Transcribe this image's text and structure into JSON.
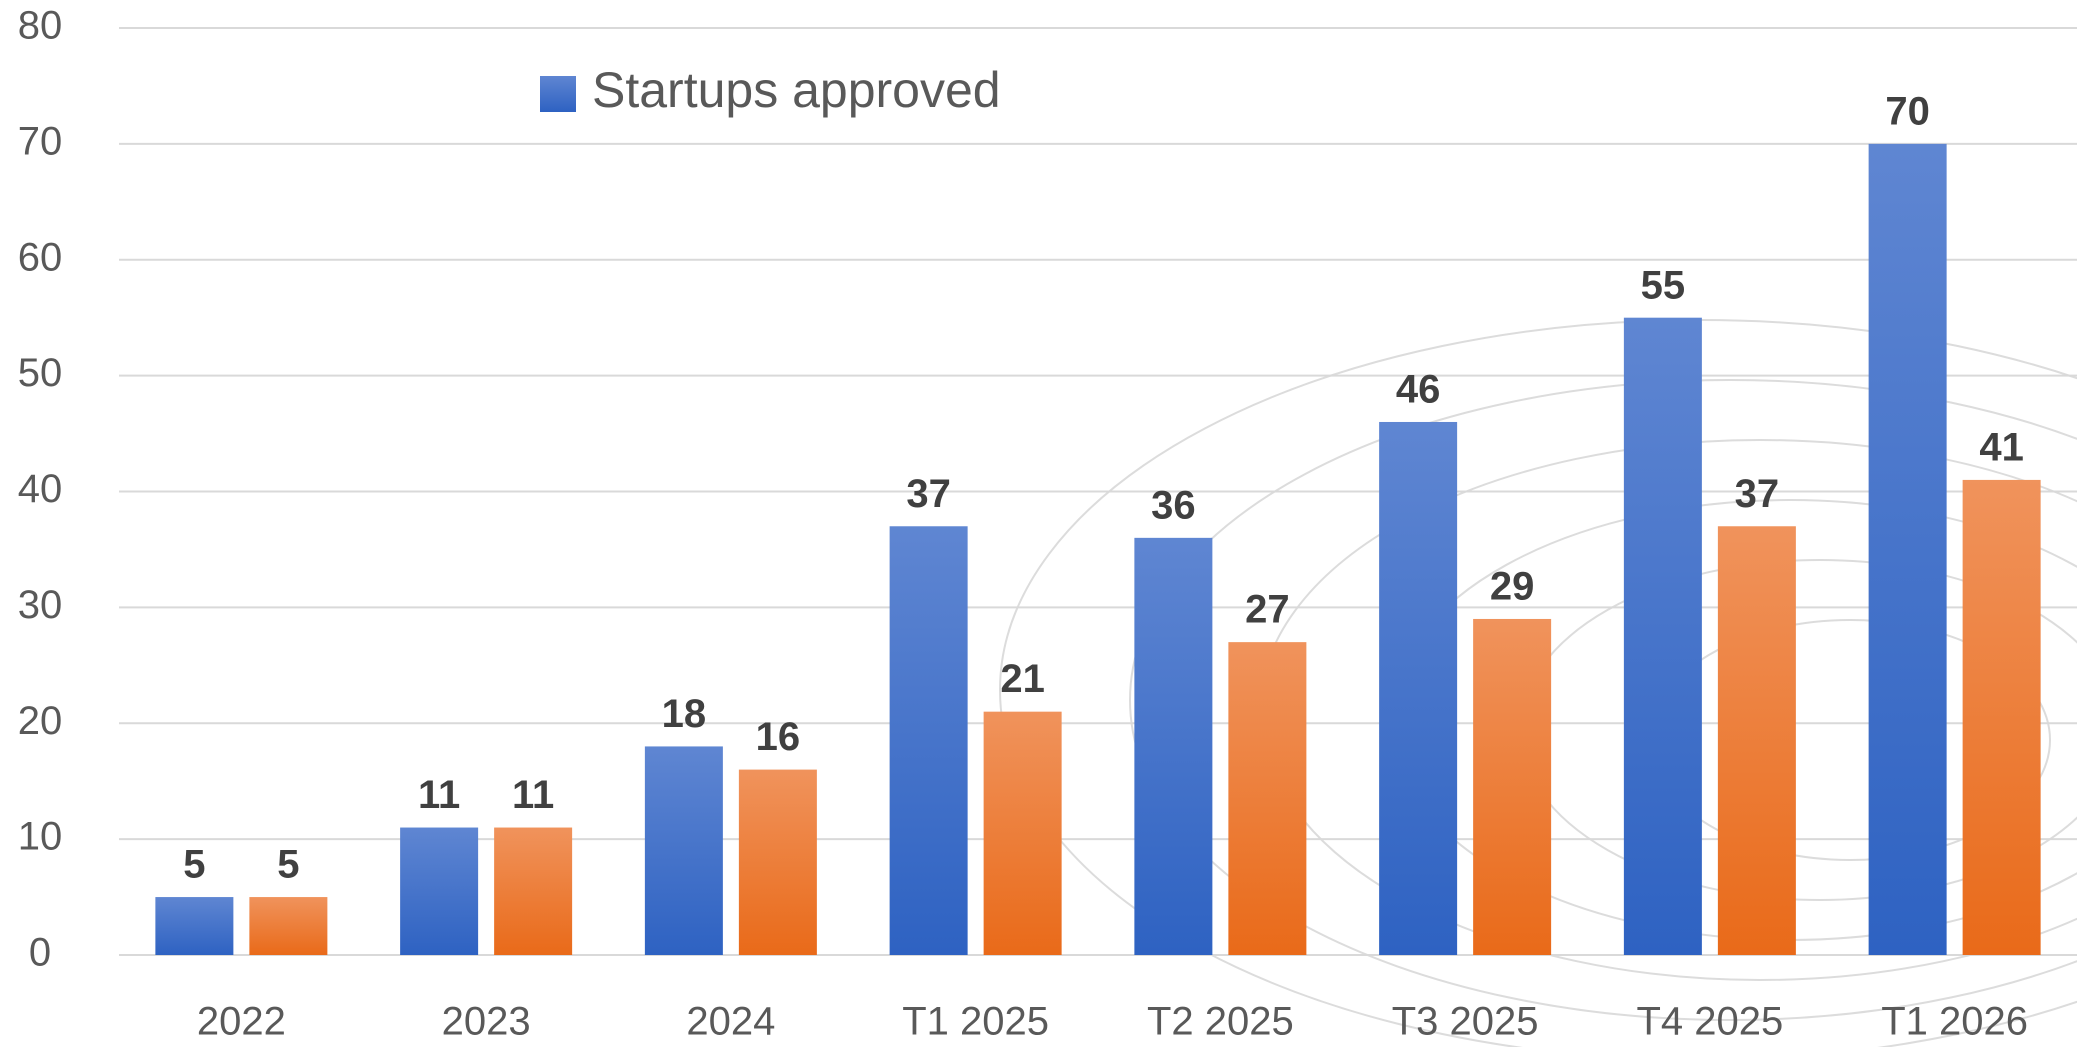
{
  "chart_data": {
    "type": "bar",
    "categories": [
      "2022",
      "2023",
      "2024",
      "T1 2025",
      "T2 2025",
      "T3 2025",
      "T4 2025",
      "T1 2026"
    ],
    "series": [
      {
        "name": "Startups approved",
        "color": "#4472c4",
        "values": [
          5,
          11,
          18,
          37,
          36,
          46,
          55,
          70
        ]
      },
      {
        "color": "#ed7d31",
        "values": [
          5,
          11,
          16,
          21,
          27,
          29,
          37,
          41
        ]
      }
    ],
    "ylim": [
      0,
      80
    ],
    "yticks": [
      0,
      10,
      20,
      30,
      40,
      50,
      60,
      70,
      80
    ],
    "grid": true,
    "legend": "top"
  }
}
